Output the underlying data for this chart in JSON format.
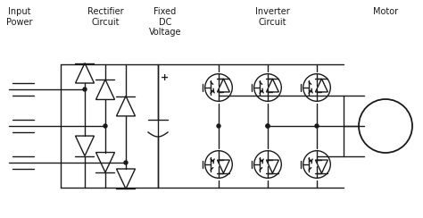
{
  "bg_color": "#ffffff",
  "line_color": "#1a1a1a",
  "text_color": "#000000",
  "labels": {
    "input_power": "Input\nPower",
    "rectifier": "Rectifier\nCircuit",
    "fixed_dc": "Fixed\nDC\nVoltage",
    "inverter": "Inverter\nCircuit",
    "motor": "Motor"
  },
  "figsize": [
    4.74,
    2.44
  ],
  "dpi": 100,
  "lw": 1.0
}
